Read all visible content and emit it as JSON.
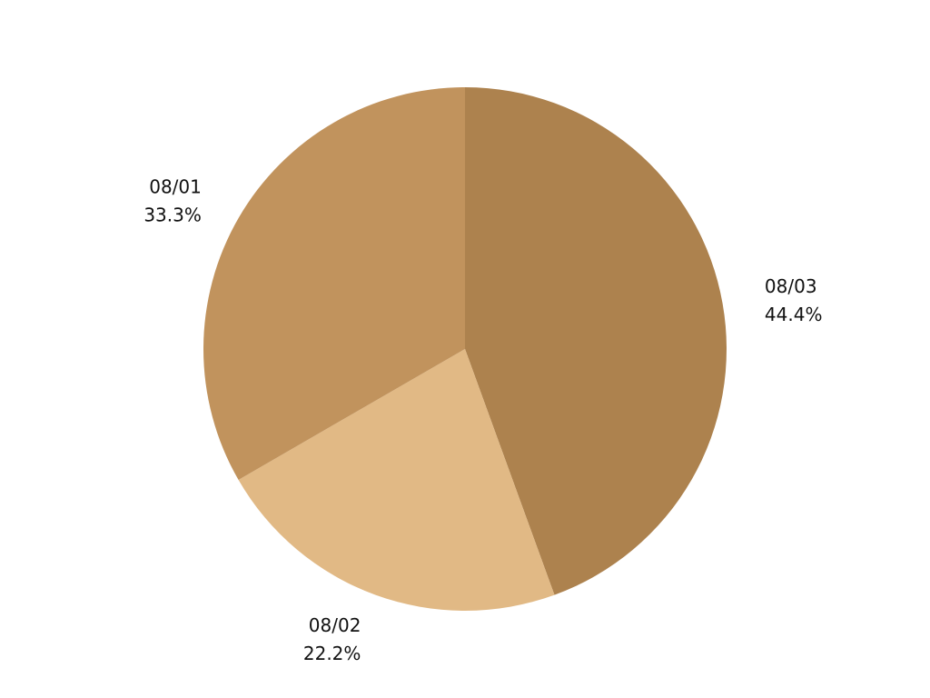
{
  "chart_data": {
    "type": "pie",
    "title": "",
    "slices": [
      {
        "label": "08/03",
        "value": 44.4,
        "value_label": "44.4%",
        "color": "#ad824e"
      },
      {
        "label": "08/02",
        "value": 22.2,
        "value_label": "22.2%",
        "color": "#e1b985"
      },
      {
        "label": "08/01",
        "value": 33.3,
        "value_label": "33.3%",
        "color": "#c1935d"
      }
    ],
    "start_angle": "12 o'clock",
    "direction": "clockwise",
    "legend": "none"
  }
}
